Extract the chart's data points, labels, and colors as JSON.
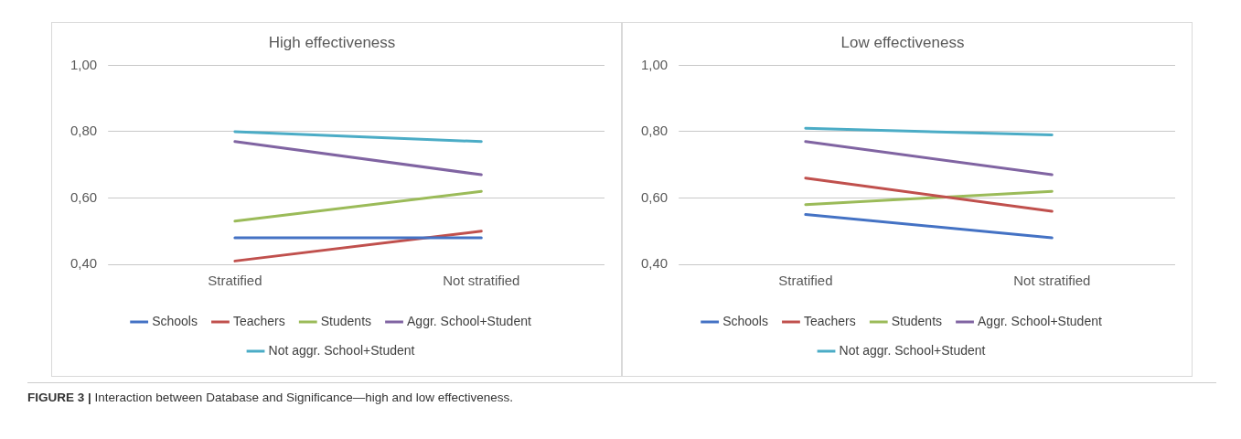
{
  "chart_data": [
    {
      "type": "line",
      "title": "High effectiveness",
      "categories": [
        "Stratified",
        "Not stratified"
      ],
      "series": [
        {
          "name": "Schools",
          "color": "#4472c4",
          "values": [
            0.48,
            0.48
          ]
        },
        {
          "name": "Teachers",
          "color": "#c0504d",
          "values": [
            0.41,
            0.5
          ]
        },
        {
          "name": "Students",
          "color": "#9bbb59",
          "values": [
            0.53,
            0.62
          ]
        },
        {
          "name": "Aggr. School+Student",
          "color": "#8064a2",
          "values": [
            0.77,
            0.67
          ]
        },
        {
          "name": "Not aggr. School+Student",
          "color": "#4bacc6",
          "values": [
            0.8,
            0.77
          ]
        }
      ],
      "ylim": [
        0.4,
        1.0
      ],
      "yticks": [
        {
          "value": 0.4,
          "label": "0,40"
        },
        {
          "value": 0.6,
          "label": "0,60"
        },
        {
          "value": 0.8,
          "label": "0,80"
        },
        {
          "value": 1.0,
          "label": "1,00"
        }
      ],
      "grid": "y",
      "legend": "bottom",
      "marker": "none",
      "line_style": "solid",
      "annotations": [
        "FIGURE 3 | Interaction between Database and Significance—high and low effectiveness."
      ]
    },
    {
      "type": "line",
      "title": "Low effectiveness",
      "categories": [
        "Stratified",
        "Not stratified"
      ],
      "series": [
        {
          "name": "Schools",
          "color": "#4472c4",
          "values": [
            0.55,
            0.48
          ]
        },
        {
          "name": "Teachers",
          "color": "#c0504d",
          "values": [
            0.66,
            0.56
          ]
        },
        {
          "name": "Students",
          "color": "#9bbb59",
          "values": [
            0.58,
            0.62
          ]
        },
        {
          "name": "Aggr. School+Student",
          "color": "#8064a2",
          "values": [
            0.77,
            0.67
          ]
        },
        {
          "name": "Not aggr. School+Student",
          "color": "#4bacc6",
          "values": [
            0.81,
            0.79
          ]
        }
      ],
      "ylim": [
        0.4,
        1.0
      ],
      "yticks": [
        {
          "value": 0.4,
          "label": "0,40"
        },
        {
          "value": 0.6,
          "label": "0,60"
        },
        {
          "value": 0.8,
          "label": "0,80"
        },
        {
          "value": 1.0,
          "label": "1,00"
        }
      ],
      "grid": "y",
      "legend": "bottom",
      "marker": "none",
      "line_style": "solid"
    }
  ]
}
